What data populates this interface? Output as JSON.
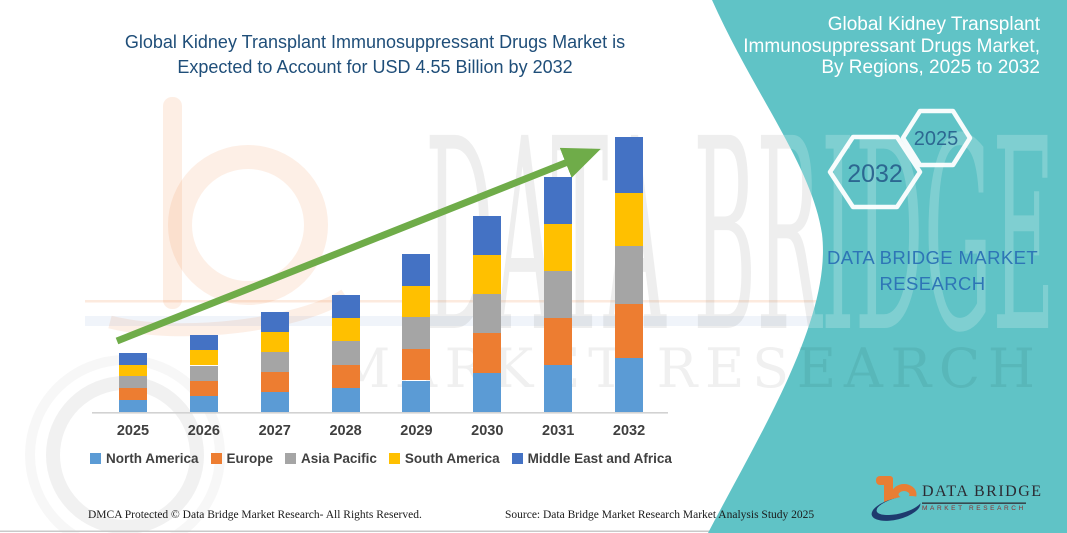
{
  "header": {
    "title_line1": "Global Kidney Transplant Immunosuppressant Drugs Market is",
    "title_line2": "Expected to Account for USD 4.55 Billion by 2032"
  },
  "side_panel": {
    "bg_color": "#60C3C6",
    "title_lines": [
      "Global Kidney Transplant",
      "Immunosuppressant Drugs Market,",
      "By Regions, 2025 to 2032"
    ],
    "hex_large_year": "2032",
    "hex_small_year": "2025",
    "brand_line1": "DATA BRIDGE MARKET",
    "brand_line2": "RESEARCH"
  },
  "watermark": {
    "brand": "DATA BRIDGE",
    "sub": "MARKET RESEARCH"
  },
  "chart_data": {
    "type": "bar",
    "stacked": true,
    "title": "Global Kidney Transplant Immunosuppressant Drugs Market is Expected to Account for USD 4.55 Billion by 2032",
    "unit": "USD Billion",
    "categories": [
      "2025",
      "2026",
      "2027",
      "2028",
      "2029",
      "2030",
      "2031",
      "2032"
    ],
    "series": [
      {
        "name": "North America",
        "color": "#5B9BD5",
        "values": [
          0.2,
          0.26,
          0.33,
          0.39,
          0.52,
          0.65,
          0.78,
          0.9
        ]
      },
      {
        "name": "Europe",
        "color": "#ED7D31",
        "values": [
          0.19,
          0.25,
          0.33,
          0.39,
          0.52,
          0.65,
          0.78,
          0.88
        ]
      },
      {
        "name": "Asia Pacific",
        "color": "#A5A5A5",
        "values": [
          0.2,
          0.26,
          0.33,
          0.39,
          0.53,
          0.65,
          0.78,
          0.96
        ]
      },
      {
        "name": "South America",
        "color": "#FFC000",
        "values": [
          0.19,
          0.25,
          0.33,
          0.38,
          0.52,
          0.65,
          0.77,
          0.88
        ]
      },
      {
        "name": "Middle East and Africa",
        "color": "#4472C4",
        "values": [
          0.19,
          0.25,
          0.33,
          0.38,
          0.52,
          0.65,
          0.78,
          0.93
        ]
      }
    ],
    "totals": [
      0.97,
      1.27,
      1.65,
      1.93,
      2.61,
      3.25,
      3.89,
      4.55
    ],
    "trend_arrow_color": "#6FAC49",
    "grid": false,
    "legend_position": "bottom"
  },
  "footer": {
    "dmca": "DMCA Protected © Data Bridge Market Research-  All Rights Reserved.",
    "source": "Source: Data Bridge Market Research  Market Analysis Study 2025",
    "logo_name": "DATA BRIDGE",
    "logo_sub": "MARKET RESEARCH"
  }
}
